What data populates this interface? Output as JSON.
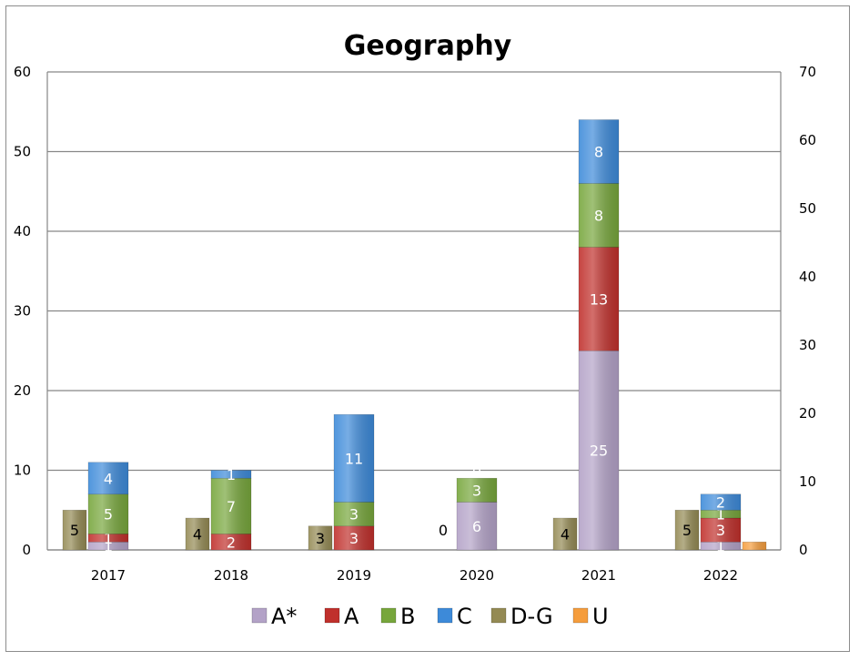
{
  "chart_data": {
    "type": "bar",
    "title": "Geography",
    "categories": [
      "2017",
      "2018",
      "2019",
      "2020",
      "2021",
      "2022"
    ],
    "ylim_left": [
      0,
      60
    ],
    "yticks_left": [
      0,
      10,
      20,
      30,
      40,
      50,
      60
    ],
    "ylim_right": [
      0,
      70
    ],
    "yticks_right": [
      0,
      10,
      20,
      30,
      40,
      50,
      60,
      70
    ],
    "stacked_series": [
      {
        "name": "A*",
        "color": "#b3a2c7",
        "values": [
          1,
          0,
          0,
          6,
          25,
          1
        ]
      },
      {
        "name": "A",
        "color": "#c0302c",
        "values": [
          1,
          2,
          3,
          0,
          13,
          3
        ]
      },
      {
        "name": "B",
        "color": "#77a63c",
        "values": [
          5,
          7,
          3,
          3,
          8,
          1
        ]
      },
      {
        "name": "C",
        "color": "#3d8ad9",
        "values": [
          4,
          1,
          11,
          0,
          8,
          2
        ]
      }
    ],
    "side_series": [
      {
        "name": "D-G",
        "color": "#948a54",
        "values": [
          5,
          4,
          3,
          0,
          4,
          5
        ]
      },
      {
        "name": "U",
        "color": "#f59d3d",
        "values": [
          0,
          0,
          0,
          0,
          0,
          1
        ]
      }
    ],
    "legend": [
      "A*",
      "A",
      "B",
      "C",
      "D-G",
      "U"
    ],
    "legend_position": "bottom",
    "grid": true
  }
}
